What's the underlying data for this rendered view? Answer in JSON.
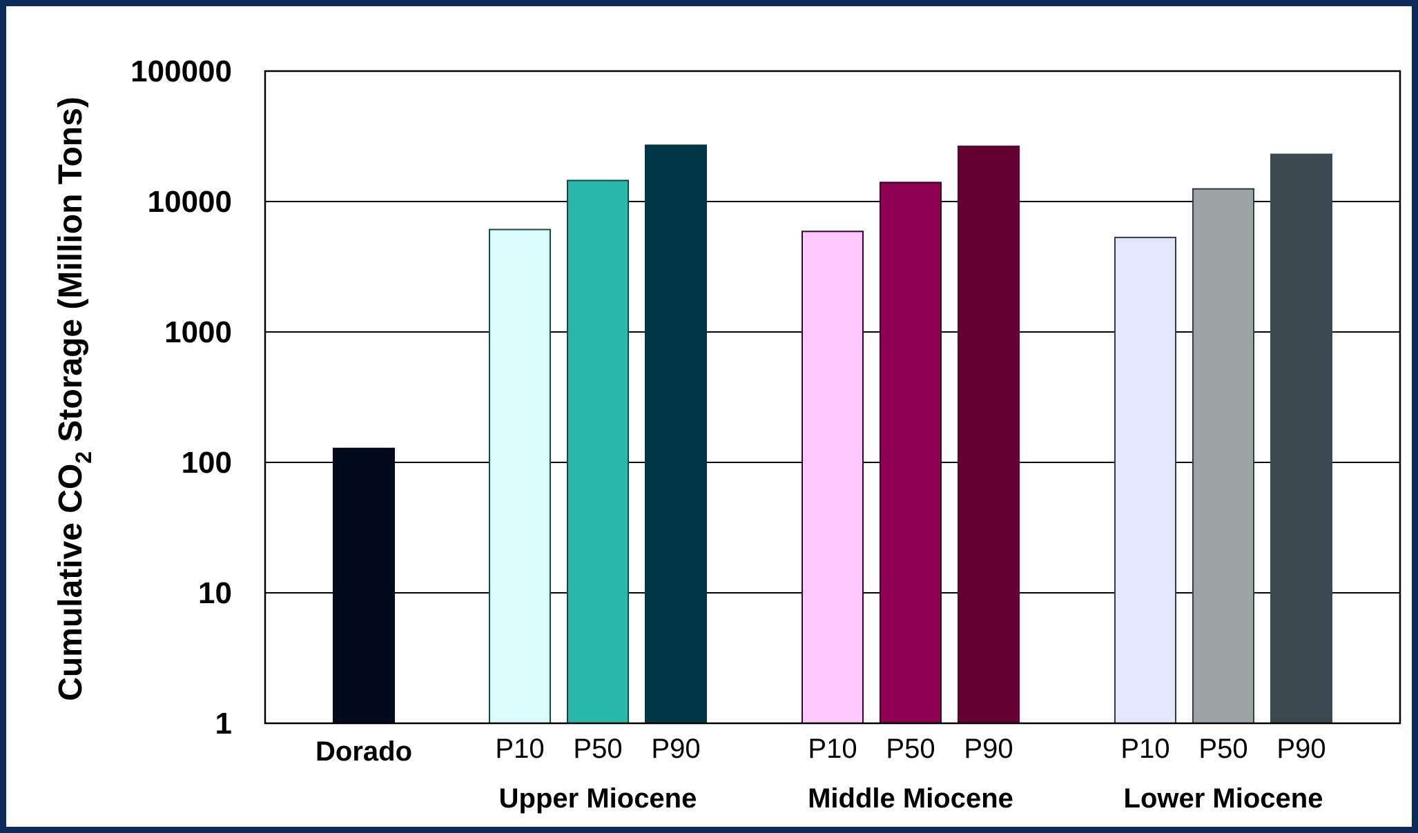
{
  "chart_data": {
    "type": "bar",
    "scale": "log",
    "ylabel": {
      "prefix": "Cumulative CO",
      "subscript": "2",
      "suffix": " Storage (Million Tons)"
    },
    "ylim": [
      1,
      100000
    ],
    "yticks": [
      1,
      10,
      100,
      1000,
      10000,
      100000
    ],
    "grid": true,
    "bars": [
      {
        "label": "Dorado",
        "group": "",
        "value": 128,
        "color": "#000a1a",
        "stroke": "#000a1a"
      },
      {
        "label": "P10",
        "group": "Upper Miocene",
        "value": 6100,
        "color": "#dcfdfd",
        "stroke": "#0e4a4a"
      },
      {
        "label": "P50",
        "group": "Upper Miocene",
        "value": 14500,
        "color": "#2ab8aa",
        "stroke": "#0e4a4a"
      },
      {
        "label": "P90",
        "group": "Upper Miocene",
        "value": 27000,
        "color": "#003746",
        "stroke": "#003746"
      },
      {
        "label": "P10",
        "group": "Middle Miocene",
        "value": 5900,
        "color": "#ffc8ff",
        "stroke": "#3a0030"
      },
      {
        "label": "P50",
        "group": "Middle Miocene",
        "value": 14000,
        "color": "#8c004f",
        "stroke": "#3a0030"
      },
      {
        "label": "P90",
        "group": "Middle Miocene",
        "value": 26500,
        "color": "#660033",
        "stroke": "#660033"
      },
      {
        "label": "P10",
        "group": "Lower Miocene",
        "value": 5300,
        "color": "#e4e8ff",
        "stroke": "#303a48"
      },
      {
        "label": "P50",
        "group": "Lower Miocene",
        "value": 12500,
        "color": "#9aa4a4",
        "stroke": "#303a48"
      },
      {
        "label": "P90",
        "group": "Lower Miocene",
        "value": 23000,
        "color": "#3b4850",
        "stroke": "#3b4850"
      }
    ],
    "groups": [
      "Upper Miocene",
      "Middle Miocene",
      "Lower Miocene"
    ]
  }
}
